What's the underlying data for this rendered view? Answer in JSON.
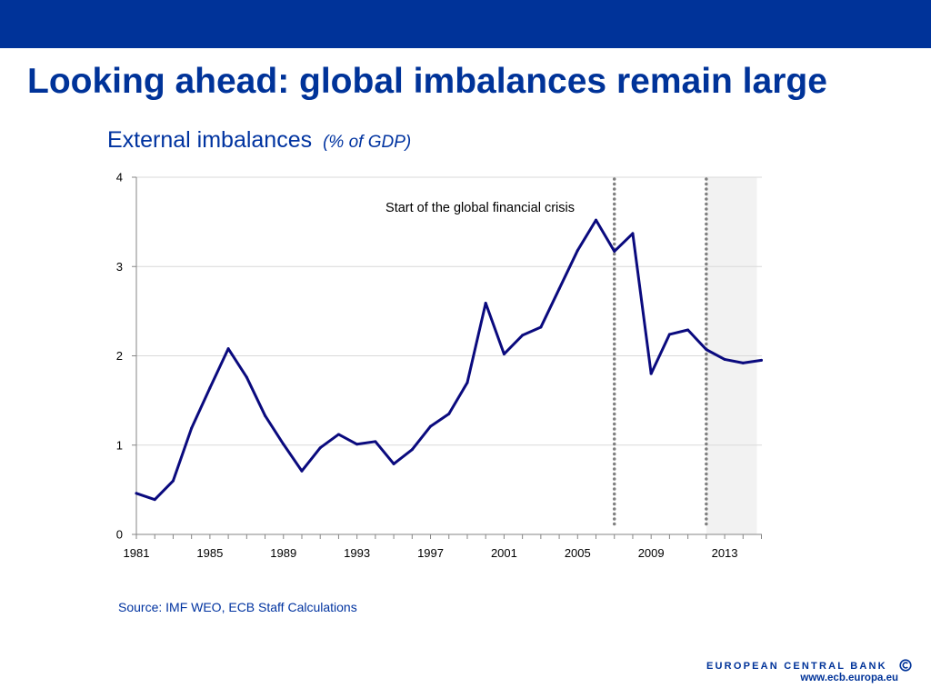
{
  "slide": {
    "title": "Looking ahead: global imbalances remain large",
    "source": "Source: IMF WEO, ECB Staff Calculations"
  },
  "chart_data": {
    "type": "line",
    "title": "External imbalances",
    "title_unit": "(% of GDP)",
    "x": [
      1981,
      1982,
      1983,
      1984,
      1985,
      1986,
      1987,
      1988,
      1989,
      1990,
      1991,
      1992,
      1993,
      1994,
      1995,
      1996,
      1997,
      1998,
      1999,
      2000,
      2001,
      2002,
      2003,
      2004,
      2005,
      2006,
      2007,
      2008,
      2009,
      2010,
      2011,
      2012,
      2013,
      2014,
      2015
    ],
    "series": [
      {
        "values": [
          0.46,
          0.39,
          0.6,
          1.19,
          1.64,
          2.08,
          1.76,
          1.33,
          1.01,
          0.71,
          0.97,
          1.12,
          1.01,
          1.04,
          0.79,
          0.95,
          1.21,
          1.35,
          1.7,
          2.59,
          2.02,
          2.23,
          2.32,
          2.75,
          3.18,
          3.52,
          3.17,
          3.37,
          1.8,
          2.24,
          2.29,
          2.07,
          1.96,
          1.92,
          1.95
        ],
        "color": "#0a0a7e"
      }
    ],
    "xlim": [
      1981,
      2015
    ],
    "ylim": [
      0,
      4
    ],
    "xticks": [
      "1981",
      "1985",
      "1989",
      "1993",
      "1997",
      "2001",
      "2005",
      "2009",
      "2013"
    ],
    "yticks": [
      "0",
      "1",
      "2",
      "3",
      "4"
    ],
    "grid": true,
    "legend": "none",
    "vlines": [
      2007,
      2012
    ],
    "vline_color": "#808080",
    "shaded_x_range": [
      2012,
      2014.75
    ],
    "shade_color": "#f2f2f2",
    "annotation": "Start of the global financial crisis"
  },
  "footer": {
    "bank_name": "EUROPEAN CENTRAL BANK",
    "url": "www.ecb.europa.eu",
    "logo_icon": "ecb-logo-icon"
  },
  "colors": {
    "header_bar": "#003399",
    "title_blue": "#003399",
    "text_blue": "#0033a0"
  }
}
